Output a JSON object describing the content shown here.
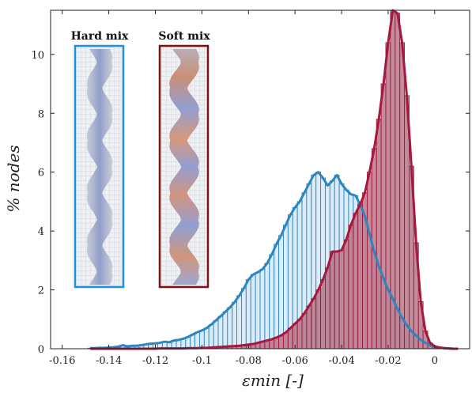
{
  "chart_data": {
    "type": "bar",
    "xlabel": "εmin [-]",
    "ylabel": "% nodes",
    "xlim": [
      -0.165,
      0.015
    ],
    "ylim": [
      0,
      11.5
    ],
    "xticks": [
      -0.16,
      -0.14,
      -0.12,
      -0.1,
      -0.08,
      -0.06,
      -0.04,
      -0.02,
      0
    ],
    "xtick_labels": [
      "-0.16",
      "-0.14",
      "-0.12",
      "-0.1",
      "-0.08",
      "-0.06",
      "-0.04",
      "-0.02",
      "0"
    ],
    "yticks": [
      0,
      2,
      4,
      6,
      8,
      10
    ],
    "ytick_labels": [
      "0",
      "2",
      "4",
      "6",
      "8",
      "10"
    ],
    "grid": false,
    "bin_width": 0.002,
    "series": [
      {
        "name": "Hard mix",
        "color": "#2E86C1",
        "x": [
          -0.148,
          -0.146,
          -0.144,
          -0.142,
          -0.14,
          -0.138,
          -0.136,
          -0.134,
          -0.132,
          -0.13,
          -0.128,
          -0.126,
          -0.124,
          -0.122,
          -0.12,
          -0.118,
          -0.116,
          -0.114,
          -0.112,
          -0.11,
          -0.108,
          -0.106,
          -0.104,
          -0.102,
          -0.1,
          -0.098,
          -0.096,
          -0.094,
          -0.092,
          -0.09,
          -0.088,
          -0.086,
          -0.084,
          -0.082,
          -0.08,
          -0.078,
          -0.076,
          -0.074,
          -0.072,
          -0.07,
          -0.068,
          -0.066,
          -0.064,
          -0.062,
          -0.06,
          -0.058,
          -0.056,
          -0.054,
          -0.052,
          -0.05,
          -0.048,
          -0.046,
          -0.044,
          -0.042,
          -0.04,
          -0.038,
          -0.036,
          -0.034,
          -0.032,
          -0.03,
          -0.028,
          -0.026,
          -0.024,
          -0.022,
          -0.02,
          -0.018,
          -0.016,
          -0.014,
          -0.012,
          -0.01,
          -0.008,
          -0.006,
          -0.004,
          -0.002,
          0.0,
          0.002,
          0.004,
          0.006,
          0.008,
          0.01
        ],
        "values": [
          0.02,
          0.02,
          0.03,
          0.03,
          0.04,
          0.05,
          0.07,
          0.12,
          0.08,
          0.1,
          0.1,
          0.12,
          0.15,
          0.17,
          0.18,
          0.2,
          0.24,
          0.22,
          0.28,
          0.3,
          0.34,
          0.4,
          0.48,
          0.56,
          0.62,
          0.7,
          0.82,
          0.96,
          1.1,
          1.25,
          1.4,
          1.58,
          1.8,
          2.05,
          2.35,
          2.52,
          2.6,
          2.7,
          2.9,
          3.2,
          3.55,
          3.85,
          4.2,
          4.55,
          4.8,
          5.0,
          5.3,
          5.6,
          5.9,
          6.0,
          5.8,
          5.55,
          5.7,
          5.9,
          5.6,
          5.4,
          5.25,
          5.2,
          4.9,
          4.5,
          3.9,
          3.3,
          2.8,
          2.4,
          2.0,
          1.7,
          1.35,
          1.05,
          0.8,
          0.6,
          0.45,
          0.3,
          0.2,
          0.12,
          0.07,
          0.04,
          0.02,
          0.01,
          0.0,
          0.0
        ]
      },
      {
        "name": "Soft mix",
        "color": "#A5193C",
        "x": [
          -0.148,
          -0.146,
          -0.144,
          -0.142,
          -0.14,
          -0.138,
          -0.136,
          -0.134,
          -0.132,
          -0.13,
          -0.128,
          -0.126,
          -0.124,
          -0.122,
          -0.12,
          -0.118,
          -0.116,
          -0.114,
          -0.112,
          -0.11,
          -0.108,
          -0.106,
          -0.104,
          -0.102,
          -0.1,
          -0.098,
          -0.096,
          -0.094,
          -0.092,
          -0.09,
          -0.088,
          -0.086,
          -0.084,
          -0.082,
          -0.08,
          -0.078,
          -0.076,
          -0.074,
          -0.072,
          -0.07,
          -0.068,
          -0.066,
          -0.064,
          -0.062,
          -0.06,
          -0.058,
          -0.056,
          -0.054,
          -0.052,
          -0.05,
          -0.048,
          -0.046,
          -0.044,
          -0.042,
          -0.04,
          -0.038,
          -0.036,
          -0.034,
          -0.032,
          -0.03,
          -0.028,
          -0.026,
          -0.024,
          -0.022,
          -0.02,
          -0.018,
          -0.016,
          -0.014,
          -0.012,
          -0.01,
          -0.008,
          -0.006,
          -0.004,
          -0.002,
          0.0,
          0.002,
          0.004,
          0.006,
          0.008,
          0.01
        ],
        "values": [
          0.0,
          0.0,
          0.0,
          0.0,
          0.0,
          0.0,
          0.0,
          0.0,
          0.0,
          0.0,
          0.0,
          0.0,
          0.0,
          0.0,
          0.0,
          0.01,
          0.01,
          0.01,
          0.01,
          0.01,
          0.01,
          0.02,
          0.02,
          0.02,
          0.03,
          0.03,
          0.04,
          0.05,
          0.06,
          0.07,
          0.08,
          0.09,
          0.1,
          0.12,
          0.14,
          0.16,
          0.2,
          0.24,
          0.28,
          0.32,
          0.38,
          0.45,
          0.55,
          0.7,
          0.85,
          1.0,
          1.2,
          1.45,
          1.7,
          2.0,
          2.35,
          2.75,
          3.3,
          3.3,
          3.35,
          3.7,
          4.2,
          4.6,
          4.9,
          5.3,
          6.0,
          6.8,
          7.8,
          9.0,
          10.4,
          11.5,
          11.4,
          10.4,
          8.6,
          6.2,
          3.6,
          1.6,
          0.6,
          0.2,
          0.08,
          0.04,
          0.02,
          0.01,
          0.0,
          0.0
        ]
      }
    ],
    "insets": [
      {
        "label": "Hard mix",
        "border_color": "#1E90E0"
      },
      {
        "label": "Soft mix",
        "border_color": "#7A1212"
      }
    ]
  }
}
